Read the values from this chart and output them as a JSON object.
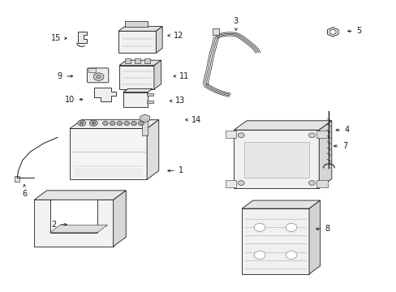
{
  "bg_color": "#ffffff",
  "line_color": "#1a1a1a",
  "figsize": [
    4.89,
    3.6
  ],
  "dpi": 100,
  "lw": 0.6,
  "labels": {
    "1": [
      0.415,
      0.415,
      0.455,
      0.415
    ],
    "2": [
      0.175,
      0.23,
      0.135,
      0.23
    ],
    "3": [
      0.595,
      0.895,
      0.595,
      0.93
    ],
    "4": [
      0.84,
      0.555,
      0.875,
      0.555
    ],
    "5": [
      0.87,
      0.895,
      0.905,
      0.895
    ],
    "6": [
      0.06,
      0.37,
      0.06,
      0.335
    ],
    "7": [
      0.835,
      0.5,
      0.87,
      0.5
    ],
    "8": [
      0.79,
      0.215,
      0.825,
      0.215
    ],
    "9": [
      0.19,
      0.74,
      0.15,
      0.74
    ],
    "10": [
      0.215,
      0.66,
      0.175,
      0.66
    ],
    "11": [
      0.43,
      0.74,
      0.465,
      0.74
    ],
    "12": [
      0.415,
      0.88,
      0.45,
      0.88
    ],
    "13": [
      0.42,
      0.655,
      0.455,
      0.655
    ],
    "14": [
      0.46,
      0.59,
      0.495,
      0.59
    ],
    "15": [
      0.175,
      0.87,
      0.14,
      0.87
    ]
  }
}
